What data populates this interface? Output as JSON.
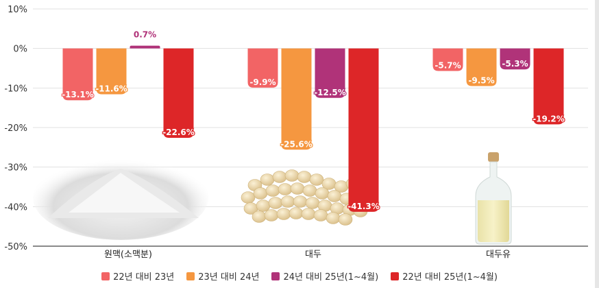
{
  "chart_data": {
    "type": "bar",
    "categories": [
      "원맥(소맥분)",
      "대두",
      "대두유"
    ],
    "series": [
      {
        "name": "22년 대비 23년",
        "values": [
          -13.1,
          -9.9,
          -5.7
        ],
        "color": "#f26465",
        "labels": [
          "-13.1%",
          "-9.9%",
          "-5.7%"
        ]
      },
      {
        "name": "23년 대비 24년",
        "values": [
          -11.6,
          -25.6,
          -9.5
        ],
        "color": "#f59740",
        "labels": [
          "-11.6%",
          "-25.6%",
          "-9.5%"
        ]
      },
      {
        "name": "24년 대비 25년(1~4월)",
        "values": [
          0.7,
          -12.5,
          -5.3
        ],
        "color": "#b03379",
        "labels": [
          "0.7%",
          "-12.5%",
          "-5.3%"
        ]
      },
      {
        "name": "22년 대비 25년(1~4월)",
        "values": [
          -22.6,
          -41.3,
          -19.2
        ],
        "color": "#dd2628",
        "labels": [
          "-22.6%",
          "-41.3%",
          "-19.2%"
        ]
      }
    ],
    "ylim": [
      -50,
      10
    ],
    "yticks": [
      10,
      0,
      -10,
      -20,
      -30,
      -40,
      -50
    ],
    "ytick_labels": [
      "10%",
      "0%",
      "-10%",
      "-20%",
      "-30%",
      "-40%",
      "-50%"
    ],
    "grid": true,
    "legend_position": "bottom",
    "illustrations": [
      "flour-pile-image",
      "soybeans-image",
      "oil-bottle-image"
    ]
  }
}
